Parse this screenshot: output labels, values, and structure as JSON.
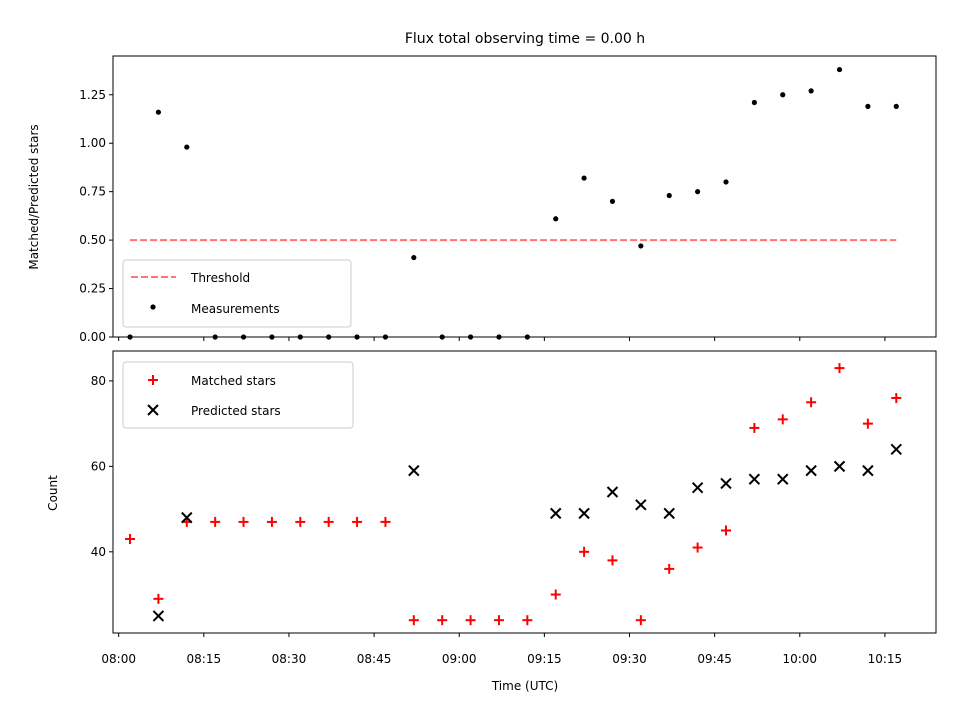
{
  "chart_data": [
    {
      "type": "scatter",
      "title": "Flux total observing time = 0.00 h",
      "xlabel": "",
      "ylabel": "Matched/Predicted stars",
      "ylim": [
        0,
        1.45
      ],
      "yticks": [
        "0.00",
        "0.25",
        "0.50",
        "0.75",
        "1.00",
        "1.25"
      ],
      "legend_position": "lower-left",
      "threshold": {
        "name": "Threshold",
        "value": 0.5,
        "x_start": "08:02",
        "x_end": "10:17",
        "color": "#ff7373",
        "style": "dashed"
      },
      "series": [
        {
          "name": "Measurements",
          "color": "#000000",
          "marker": "dot",
          "x": [
            "08:02",
            "08:07",
            "08:12",
            "08:17",
            "08:22",
            "08:27",
            "08:32",
            "08:37",
            "08:42",
            "08:47",
            "08:52",
            "08:57",
            "09:02",
            "09:07",
            "09:12",
            "09:17",
            "09:22",
            "09:27",
            "09:32",
            "09:37",
            "09:42",
            "09:47",
            "09:52",
            "09:57",
            "10:02",
            "10:07",
            "10:12",
            "10:17"
          ],
          "y": [
            0.0,
            1.16,
            0.98,
            0.0,
            0.0,
            0.0,
            0.0,
            0.0,
            0.0,
            0.0,
            0.41,
            0.0,
            0.0,
            0.0,
            0.0,
            0.61,
            0.82,
            0.7,
            0.47,
            0.73,
            0.75,
            0.8,
            1.21,
            1.25,
            1.27,
            1.38,
            1.19,
            1.19
          ]
        }
      ]
    },
    {
      "type": "scatter",
      "title": "",
      "xlabel": "Time (UTC)",
      "ylabel": "Count",
      "ylim": [
        21,
        87
      ],
      "yticks": [
        "40",
        "60",
        "80"
      ],
      "xticks": [
        "08:00",
        "08:15",
        "08:30",
        "08:45",
        "09:00",
        "09:15",
        "09:30",
        "09:45",
        "10:00",
        "10:15"
      ],
      "legend_position": "top-left",
      "series": [
        {
          "name": "Matched stars",
          "color": "#ff0000",
          "marker": "plus",
          "x": [
            "08:02",
            "08:07",
            "08:12",
            "08:17",
            "08:22",
            "08:27",
            "08:32",
            "08:37",
            "08:42",
            "08:47",
            "08:52",
            "08:57",
            "09:02",
            "09:07",
            "09:12",
            "09:17",
            "09:22",
            "09:27",
            "09:32",
            "09:37",
            "09:42",
            "09:47",
            "09:52",
            "09:57",
            "10:02",
            "10:07",
            "10:12",
            "10:17"
          ],
          "y": [
            43,
            29,
            47,
            47,
            47,
            47,
            47,
            47,
            47,
            47,
            24,
            24,
            24,
            24,
            24,
            30,
            40,
            38,
            24,
            36,
            41,
            45,
            69,
            71,
            75,
            83,
            70,
            76
          ]
        },
        {
          "name": "Predicted stars",
          "color": "#000000",
          "marker": "x",
          "x": [
            "08:07",
            "08:12",
            "08:52",
            "09:17",
            "09:22",
            "09:27",
            "09:32",
            "09:37",
            "09:42",
            "09:47",
            "09:52",
            "09:57",
            "10:02",
            "10:07",
            "10:12",
            "10:17"
          ],
          "y": [
            25,
            48,
            59,
            49,
            49,
            54,
            51,
            49,
            55,
            56,
            57,
            57,
            59,
            60,
            59,
            64
          ]
        }
      ]
    }
  ]
}
